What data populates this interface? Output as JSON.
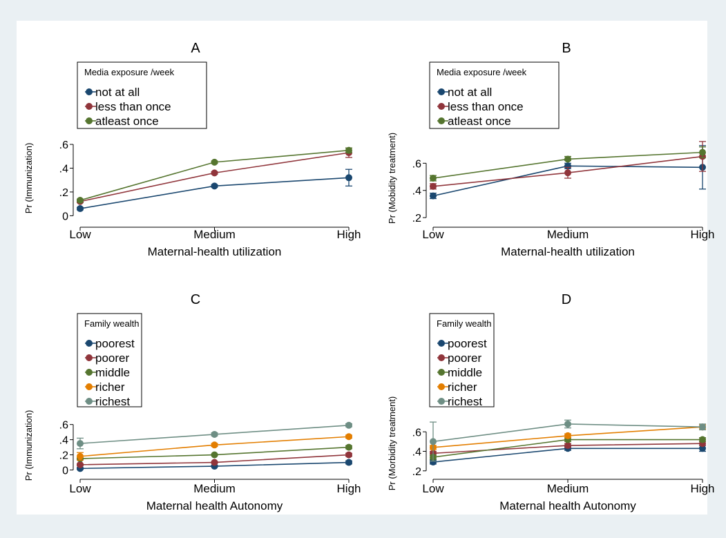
{
  "chart_data": [
    {
      "type": "line",
      "title": "A",
      "xlabel": "Maternal-health utilization",
      "ylabel": "Pr (Immunization)",
      "categories": [
        "Low",
        "Medium",
        "High"
      ],
      "ylim": [
        -0.05,
        0.67
      ],
      "yticks": [
        0,
        0.2,
        0.4,
        0.6
      ],
      "yticklabels": [
        "0",
        ".2",
        ".4",
        ".6"
      ],
      "legend_title": "Media exposure /week",
      "legend_position": "top-left",
      "series": [
        {
          "name": "not at all",
          "color": "#1a476f",
          "values": [
            0.06,
            0.25,
            0.32
          ],
          "ci_low": [
            0.05,
            0.24,
            0.25
          ],
          "ci_high": [
            0.07,
            0.26,
            0.39
          ]
        },
        {
          "name": "less than once",
          "color": "#90353b",
          "values": [
            0.12,
            0.36,
            0.53
          ],
          "ci_low": [
            0.11,
            0.35,
            0.49
          ],
          "ci_high": [
            0.13,
            0.37,
            0.57
          ]
        },
        {
          "name": "atleast once",
          "color": "#55752f",
          "values": [
            0.13,
            0.45,
            0.55
          ],
          "ci_low": [
            0.12,
            0.44,
            0.53
          ],
          "ci_high": [
            0.14,
            0.46,
            0.57
          ]
        }
      ]
    },
    {
      "type": "line",
      "title": "B",
      "xlabel": "Maternal-health utilization",
      "ylabel": "Pr (Mobidity treatment)",
      "categories": [
        "Low",
        "Medium",
        "High"
      ],
      "ylim": [
        0.17,
        0.8
      ],
      "yticks": [
        0.2,
        0.4,
        0.6
      ],
      "yticklabels": [
        ".2",
        ".4",
        ".6"
      ],
      "legend_title": "Media exposure /week",
      "legend_position": "top-left",
      "series": [
        {
          "name": "not at all",
          "color": "#1a476f",
          "values": [
            0.36,
            0.58,
            0.57
          ],
          "ci_low": [
            0.34,
            0.56,
            0.41
          ],
          "ci_high": [
            0.38,
            0.6,
            0.73
          ]
        },
        {
          "name": "less than once",
          "color": "#90353b",
          "values": [
            0.43,
            0.53,
            0.65
          ],
          "ci_low": [
            0.41,
            0.49,
            0.54
          ],
          "ci_high": [
            0.45,
            0.57,
            0.76
          ]
        },
        {
          "name": "atleast once",
          "color": "#55752f",
          "values": [
            0.49,
            0.63,
            0.68
          ],
          "ci_low": [
            0.47,
            0.62,
            0.64
          ],
          "ci_high": [
            0.51,
            0.65,
            0.72
          ]
        }
      ]
    },
    {
      "type": "line",
      "title": "C",
      "xlabel": "Maternal health Autonomy",
      "ylabel": "Pr (Immunization)",
      "categories": [
        "Low",
        "Medium",
        "High"
      ],
      "ylim": [
        -0.05,
        0.67
      ],
      "yticks": [
        0,
        0.2,
        0.4,
        0.6
      ],
      "yticklabels": [
        "0",
        ".2",
        ".4",
        ".6"
      ],
      "legend_title": "Family wealth",
      "legend_position": "top-left",
      "series": [
        {
          "name": "poorest",
          "color": "#1a476f",
          "values": [
            0.02,
            0.05,
            0.1
          ],
          "ci_low": [
            0.01,
            0.04,
            0.08
          ],
          "ci_high": [
            0.03,
            0.06,
            0.12
          ]
        },
        {
          "name": "poorer",
          "color": "#90353b",
          "values": [
            0.07,
            0.1,
            0.2
          ],
          "ci_low": [
            0.06,
            0.09,
            0.18
          ],
          "ci_high": [
            0.08,
            0.11,
            0.22
          ]
        },
        {
          "name": "middle",
          "color": "#55752f",
          "values": [
            0.15,
            0.2,
            0.3
          ],
          "ci_low": [
            0.14,
            0.19,
            0.28
          ],
          "ci_high": [
            0.16,
            0.21,
            0.32
          ]
        },
        {
          "name": "richer",
          "color": "#e37e00",
          "values": [
            0.18,
            0.33,
            0.44
          ],
          "ci_low": [
            0.13,
            0.31,
            0.42
          ],
          "ci_high": [
            0.23,
            0.35,
            0.46
          ]
        },
        {
          "name": "richest",
          "color": "#6e8e84",
          "values": [
            0.35,
            0.47,
            0.59
          ],
          "ci_low": [
            0.28,
            0.45,
            0.57
          ],
          "ci_high": [
            0.42,
            0.49,
            0.61
          ]
        }
      ]
    },
    {
      "type": "line",
      "title": "D",
      "xlabel": "Maternal health Autonomy",
      "ylabel": "Pr (Morbidity treatment)",
      "categories": [
        "Low",
        "Medium",
        "High"
      ],
      "ylim": [
        0.17,
        0.8
      ],
      "yticks": [
        0.2,
        0.4,
        0.6
      ],
      "yticklabels": [
        ".2",
        ".4",
        ".6"
      ],
      "legend_title": "Family wealth",
      "legend_position": "top-left",
      "series": [
        {
          "name": "poorest",
          "color": "#1a476f",
          "values": [
            0.29,
            0.43,
            0.43
          ],
          "ci_low": [
            0.27,
            0.41,
            0.4
          ],
          "ci_high": [
            0.31,
            0.45,
            0.46
          ]
        },
        {
          "name": "poorer",
          "color": "#90353b",
          "values": [
            0.38,
            0.46,
            0.48
          ],
          "ci_low": [
            0.36,
            0.44,
            0.46
          ],
          "ci_high": [
            0.4,
            0.48,
            0.5
          ]
        },
        {
          "name": "middle",
          "color": "#55752f",
          "values": [
            0.34,
            0.52,
            0.52
          ],
          "ci_low": [
            0.32,
            0.5,
            0.5
          ],
          "ci_high": [
            0.36,
            0.54,
            0.54
          ]
        },
        {
          "name": "richer",
          "color": "#e37e00",
          "values": [
            0.44,
            0.56,
            0.65
          ],
          "ci_low": [
            0.42,
            0.54,
            0.63
          ],
          "ci_high": [
            0.46,
            0.58,
            0.67
          ]
        },
        {
          "name": "richest",
          "color": "#6e8e84",
          "values": [
            0.5,
            0.68,
            0.65
          ],
          "ci_low": [
            0.3,
            0.64,
            0.62
          ],
          "ci_high": [
            0.7,
            0.72,
            0.68
          ]
        }
      ]
    }
  ]
}
